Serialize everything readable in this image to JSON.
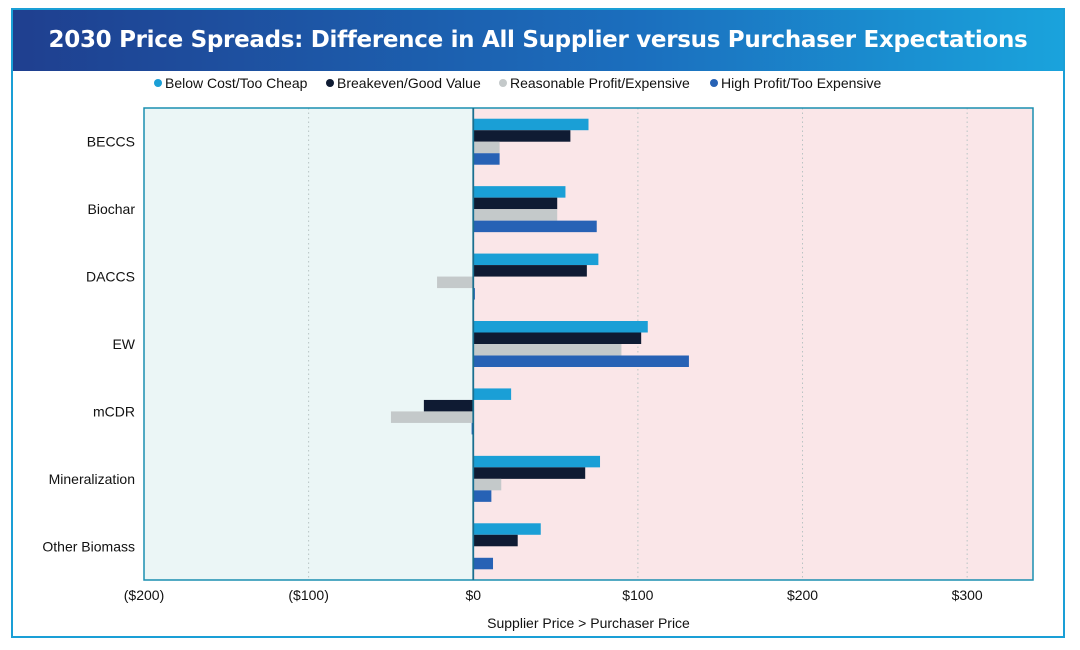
{
  "chart_data": {
    "type": "bar",
    "orientation": "horizontal",
    "title": "2030 Price Spreads: Difference in All Supplier versus Purchaser Expectations",
    "xlabel": "Supplier Price > Purchaser Price",
    "ylabel": "",
    "xlim": [
      -200,
      340
    ],
    "xticks": [
      -200,
      -100,
      0,
      100,
      200,
      300
    ],
    "xtick_labels": [
      "($200)",
      "($100)",
      "$0",
      "$100",
      "$200",
      "$300"
    ],
    "grid": "vertical dotted",
    "legend_position": "top",
    "categories": [
      "BECCS",
      "Biochar",
      "DACCS",
      "EW",
      "mCDR",
      "Mineralization",
      "Other Biomass"
    ],
    "series": [
      {
        "name": "Below Cost/Too Cheap",
        "color": "#1a9fd6",
        "values": [
          70,
          56,
          76,
          106,
          23,
          77,
          41
        ]
      },
      {
        "name": "Breakeven/Good Value",
        "color": "#0f1b33",
        "values": [
          59,
          51,
          69,
          102,
          -30,
          68,
          27
        ]
      },
      {
        "name": "Reasonable Profit/Expensive",
        "color": "#c4c9ca",
        "values": [
          16,
          51,
          -22,
          90,
          -50,
          17,
          0
        ]
      },
      {
        "name": "High Profit/Too Expensive",
        "color": "#2762b5",
        "values": [
          16,
          75,
          1,
          131,
          -1,
          11,
          12
        ]
      }
    ],
    "colors": {
      "negative_region": "#ebf6f6",
      "positive_region": "#fae6e8",
      "plot_border": "#1a8fb0",
      "zero_line": "#1a6f8f",
      "grid": "#b8c4c4"
    }
  }
}
